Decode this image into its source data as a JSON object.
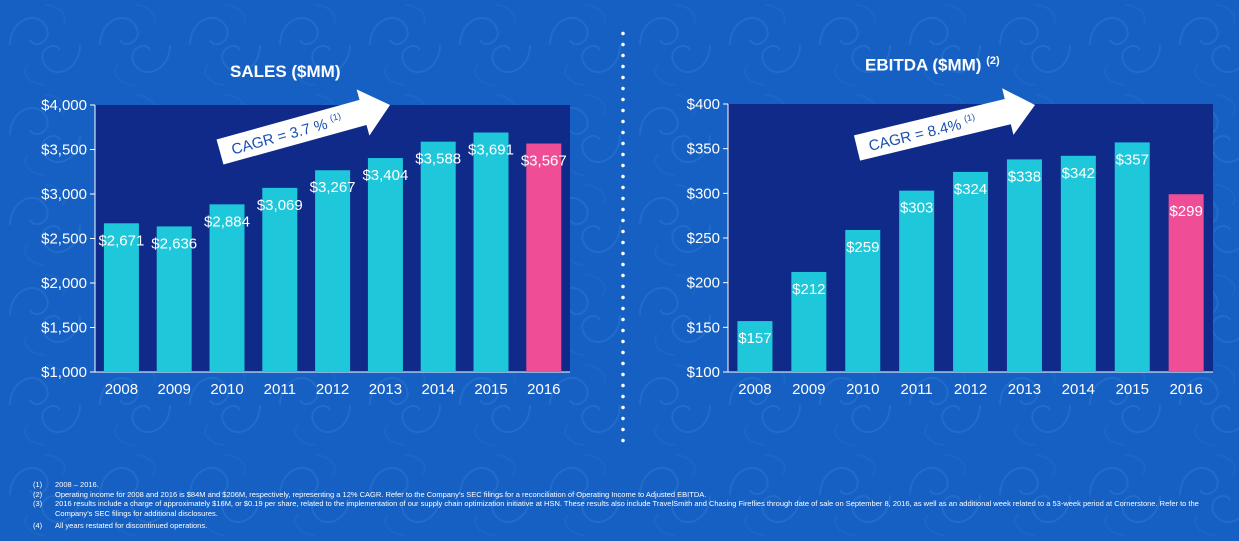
{
  "colors": {
    "background": "#1560c2",
    "plot_bg": "#0f2a88",
    "bar": "#1ec7d9",
    "bar_highlight": "#ef4e97",
    "arrow": "#ffffff",
    "cagr_text": "#1a4fb0"
  },
  "chart_data": [
    {
      "type": "bar",
      "title": "SALES ($MM)",
      "title_note": "",
      "categories": [
        "2008",
        "2009",
        "2010",
        "2011",
        "2012",
        "2013",
        "2014",
        "2015",
        "2016"
      ],
      "values": [
        2671,
        2636,
        2884,
        3069,
        3267,
        3404,
        3588,
        3691,
        3567
      ],
      "labels": [
        "$2,671",
        "$2,636",
        "$2,884",
        "$3,069",
        "$3,267",
        "$3,404",
        "$3,588",
        "$3,691",
        "$3,567"
      ],
      "ylim": [
        1000,
        4000
      ],
      "yticks": [
        1000,
        1500,
        2000,
        2500,
        3000,
        3500,
        4000
      ],
      "ytick_labels": [
        "$1,000",
        "$1,500",
        "$2,000",
        "$2,500",
        "$3,000",
        "$3,500",
        "$4,000"
      ],
      "highlight_index": 8,
      "annotation": "CAGR = 3.7 %",
      "annotation_note": "(1)",
      "xlabel": "",
      "ylabel": ""
    },
    {
      "type": "bar",
      "title": "EBITDA ($MM)",
      "title_note": "(2)",
      "categories": [
        "2008",
        "2009",
        "2010",
        "2011",
        "2012",
        "2013",
        "2014",
        "2015",
        "2016"
      ],
      "values": [
        157,
        212,
        259,
        303,
        324,
        338,
        342,
        357,
        299
      ],
      "labels": [
        "$157",
        "$212",
        "$259",
        "$303",
        "$324",
        "$338",
        "$342",
        "$357",
        "$299"
      ],
      "ylim": [
        100,
        400
      ],
      "yticks": [
        100,
        150,
        200,
        250,
        300,
        350,
        400
      ],
      "ytick_labels": [
        "$100",
        "$150",
        "$200",
        "$250",
        "$300",
        "$350",
        "$400"
      ],
      "highlight_index": 8,
      "annotation": "CAGR = 8.4%",
      "annotation_note": "(1)",
      "xlabel": "",
      "ylabel": ""
    }
  ],
  "footnotes": [
    {
      "num": "(1)",
      "text": "2008 – 2016."
    },
    {
      "num": "(2)",
      "text": "Operating income for 2008 and 2016 is $84M and $206M,  respectively, representing a 12% CAGR. Refer to the Company’s SEC filings for a reconciliation of Operating Income to Adjusted EBITDA."
    },
    {
      "num": "(3)",
      "text": "2016 results include a charge of approximately $16M, or $0.19 per share, related to the implementation of our supply chain optimization initiative at HSN.  These results also include TravelSmith and Chasing Fireflies through date of sale on September 8, 2016, as well as an additional week related to a 53-week period at Cornerstone.  Refer to the Company’s SEC filings for additional disclosures."
    },
    {
      "num": "(4)",
      "text": "All years restated for discontinued operations."
    }
  ]
}
